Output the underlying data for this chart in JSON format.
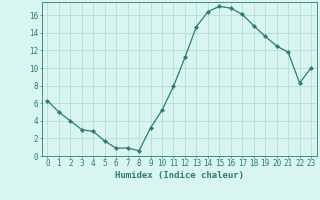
{
  "title": "",
  "xlabel": "Humidex (Indice chaleur)",
  "ylabel": "",
  "x": [
    0,
    1,
    2,
    3,
    4,
    5,
    6,
    7,
    8,
    9,
    10,
    11,
    12,
    13,
    14,
    15,
    16,
    17,
    18,
    19,
    20,
    21,
    22,
    23
  ],
  "y": [
    6.3,
    5.0,
    4.0,
    3.0,
    2.8,
    1.7,
    0.9,
    0.9,
    0.6,
    3.2,
    5.2,
    7.9,
    11.2,
    14.7,
    16.4,
    17.0,
    16.8,
    16.1,
    14.8,
    13.6,
    12.5,
    11.8,
    8.3,
    10.0
  ],
  "line_color": "#2e7d6e",
  "marker": "D",
  "markersize": 2.0,
  "linewidth": 0.9,
  "bg_color": "#d8f5f0",
  "grid_color": "#b8ddd6",
  "xlim": [
    -0.5,
    23.5
  ],
  "ylim": [
    0,
    17.5
  ],
  "xticks": [
    0,
    1,
    2,
    3,
    4,
    5,
    6,
    7,
    8,
    9,
    10,
    11,
    12,
    13,
    14,
    15,
    16,
    17,
    18,
    19,
    20,
    21,
    22,
    23
  ],
  "xtick_labels": [
    "0",
    "1",
    "2",
    "3",
    "4",
    "5",
    "6",
    "7",
    "8",
    "9",
    "10",
    "11",
    "12",
    "13",
    "14",
    "15",
    "16",
    "17",
    "18",
    "19",
    "20",
    "21",
    "22",
    "23"
  ],
  "yticks": [
    0,
    2,
    4,
    6,
    8,
    10,
    12,
    14,
    16
  ],
  "ytick_labels": [
    "0",
    "2",
    "4",
    "6",
    "8",
    "10",
    "12",
    "14",
    "16"
  ],
  "tick_fontsize": 5.5,
  "xlabel_fontsize": 6.5,
  "axes_color": "#2e7d6e"
}
